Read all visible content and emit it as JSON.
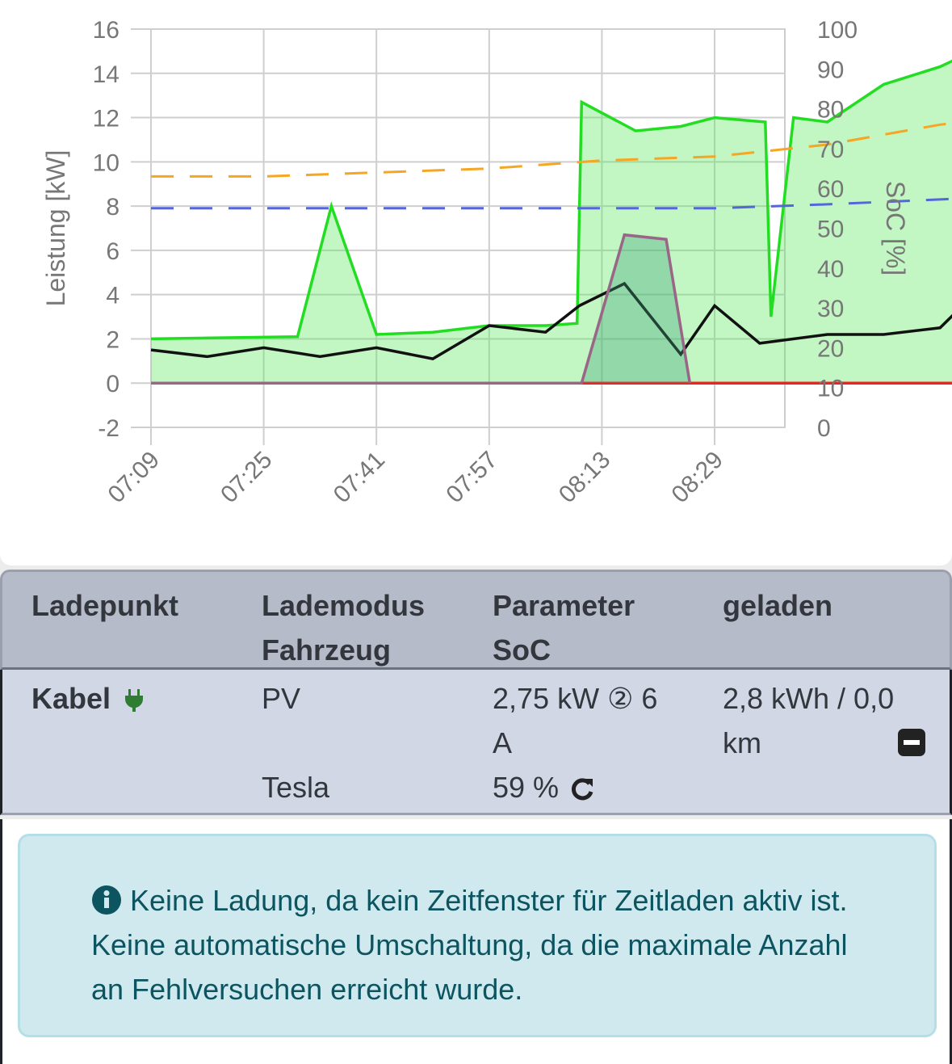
{
  "chart": {
    "y_left_ticks": [
      "16",
      "14",
      "12",
      "10",
      "8",
      "6",
      "4",
      "2",
      "0",
      "-2"
    ],
    "y_right_ticks": [
      "100",
      "90",
      "80",
      "70",
      "60",
      "50",
      "40",
      "30",
      "20",
      "10",
      "0"
    ],
    "x_ticks": [
      "07:09",
      "07:25",
      "07:41",
      "07:57",
      "08:13",
      "08:29"
    ],
    "y_left_label": "Leistung [kW]",
    "y_right_label": "SoC [%]",
    "colors": {
      "pv": "#22dd22",
      "grid": "#ee2222",
      "house": "#111111",
      "charge": "#996688",
      "yellow": "#c8b830",
      "soc_orange": "#f5a623",
      "soc_blue": "#5566dd"
    }
  },
  "chart_data": {
    "type": "line",
    "x_ticks": [
      "07:09",
      "07:25",
      "07:41",
      "07:57",
      "08:13",
      "08:29"
    ],
    "ylabel": "Leistung [kW]",
    "ylim": [
      -2,
      16
    ],
    "y2label": "SoC [%]",
    "y2lim": [
      0,
      100
    ],
    "series": [
      {
        "color": "#22dd22",
        "values": [
          [
            0,
            2.0
          ],
          [
            1.3,
            2.1
          ],
          [
            1.6,
            8.0
          ],
          [
            2.0,
            2.2
          ],
          [
            2.5,
            2.3
          ],
          [
            3.0,
            2.6
          ],
          [
            3.5,
            2.6
          ],
          [
            3.78,
            2.7
          ],
          [
            3.82,
            12.7
          ],
          [
            4.3,
            11.4
          ],
          [
            4.7,
            11.6
          ],
          [
            5.0,
            12.0
          ],
          [
            5.45,
            11.8
          ],
          [
            5.5,
            3.0
          ],
          [
            5.7,
            12.0
          ],
          [
            6.0,
            11.8
          ],
          [
            6.5,
            13.5
          ],
          [
            7.0,
            14.3
          ],
          [
            7.5,
            15.5
          ],
          [
            7.63,
            15.6
          ]
        ]
      },
      {
        "color": "#111111",
        "values": [
          [
            0,
            1.5
          ],
          [
            0.5,
            1.2
          ],
          [
            1.0,
            1.6
          ],
          [
            1.5,
            1.2
          ],
          [
            2.0,
            1.6
          ],
          [
            2.5,
            1.1
          ],
          [
            3.0,
            2.6
          ],
          [
            3.5,
            2.3
          ],
          [
            3.8,
            3.5
          ],
          [
            4.2,
            4.5
          ],
          [
            4.7,
            1.3
          ],
          [
            5.0,
            3.5
          ],
          [
            5.4,
            1.8
          ],
          [
            6.0,
            2.2
          ],
          [
            6.5,
            2.2
          ],
          [
            7.0,
            2.5
          ],
          [
            7.4,
            4.5
          ],
          [
            7.63,
            2.6
          ]
        ]
      },
      {
        "color": "#ee2222",
        "values": [
          [
            0,
            0
          ],
          [
            1.0,
            0
          ],
          [
            2.0,
            0
          ],
          [
            3.0,
            0
          ],
          [
            4.0,
            0
          ],
          [
            5.0,
            0
          ],
          [
            6.0,
            0
          ],
          [
            7.0,
            0
          ],
          [
            7.63,
            0
          ]
        ]
      },
      {
        "color": "#996688",
        "values": [
          [
            0,
            0
          ],
          [
            3.82,
            0
          ],
          [
            4.2,
            6.7
          ],
          [
            4.57,
            6.5
          ],
          [
            4.78,
            0
          ]
        ]
      },
      {
        "color": "#f5a623",
        "axis": "right",
        "values": [
          [
            0,
            63
          ],
          [
            1.0,
            63
          ],
          [
            2.0,
            64
          ],
          [
            3.0,
            65
          ],
          [
            4.0,
            67
          ],
          [
            5.0,
            68
          ],
          [
            6.0,
            71
          ],
          [
            7.0,
            76
          ],
          [
            7.63,
            78
          ]
        ]
      },
      {
        "color": "#5566dd",
        "axis": "right",
        "values": [
          [
            0,
            55
          ],
          [
            2.0,
            55
          ],
          [
            3.8,
            55
          ],
          [
            5.0,
            55
          ],
          [
            6.0,
            56
          ],
          [
            7.63,
            58
          ]
        ]
      }
    ]
  },
  "table": {
    "headers": [
      {
        "line1": "Ladepunkt",
        "line2": ""
      },
      {
        "line1": "Lademodus",
        "line2": "Fahrzeug"
      },
      {
        "line1": "Parameter",
        "line2": "SoC"
      },
      {
        "line1": "geladen",
        "line2": ""
      }
    ],
    "row": {
      "ladepunkt": "Kabel",
      "lademodus": "PV",
      "fahrzeug": "Tesla",
      "param_line1": "2,75 kW",
      "phase_symbol": "②",
      "phase_line1_rest": "6",
      "param_line2": "A",
      "soc": "59 %",
      "geladen_line1": "2,8 kWh / 0,0",
      "geladen_line2": "km"
    }
  },
  "alert": {
    "text": "Keine Ladung, da kein Zeitfenster für Zeitladen aktiv ist. Keine automatische Umschaltung, da die maximale Anzahl an Fehlversuchen erreicht wurde."
  }
}
